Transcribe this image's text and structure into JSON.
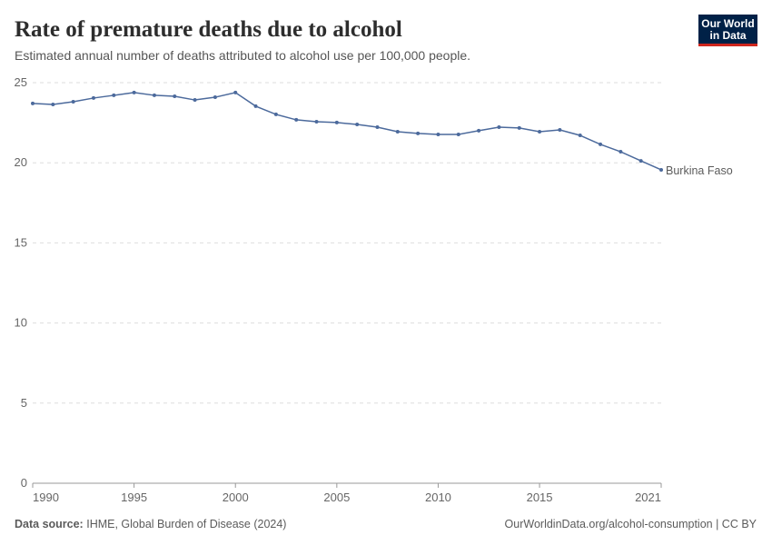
{
  "chart_data": {
    "type": "line",
    "title": "Rate of premature deaths due to alcohol",
    "subtitle": "Estimated annual number of deaths attributed to alcohol use per 100,000 people.",
    "source_label": "Data source:",
    "source": "IHME, Global Burden of Disease (2024)",
    "url": "OurWorldinData.org/alcohol-consumption | CC BY",
    "logo": [
      "Our World",
      "in Data"
    ],
    "x": [
      1990,
      1991,
      1992,
      1993,
      1994,
      1995,
      1996,
      1997,
      1998,
      1999,
      2000,
      2001,
      2002,
      2003,
      2004,
      2005,
      2006,
      2007,
      2008,
      2009,
      2010,
      2011,
      2012,
      2013,
      2014,
      2015,
      2016,
      2017,
      2018,
      2019,
      2020,
      2021
    ],
    "series": [
      {
        "name": "Burkina Faso",
        "color": "#4c6a9c",
        "values": [
          23.7,
          23.64,
          23.81,
          24.04,
          24.21,
          24.38,
          24.21,
          24.15,
          23.92,
          24.09,
          24.38,
          23.53,
          23.02,
          22.68,
          22.56,
          22.51,
          22.39,
          22.22,
          21.94,
          21.83,
          21.77,
          21.77,
          22.0,
          22.22,
          22.17,
          21.94,
          22.05,
          21.71,
          21.15,
          20.69,
          20.12,
          19.56
        ]
      }
    ],
    "xlim": [
      1990,
      2021
    ],
    "xticks": [
      1990,
      1995,
      2000,
      2005,
      2010,
      2015,
      2021
    ],
    "ylim": [
      0,
      25
    ],
    "yticks": [
      0,
      5,
      10,
      15,
      20,
      25
    ],
    "grid": true
  }
}
